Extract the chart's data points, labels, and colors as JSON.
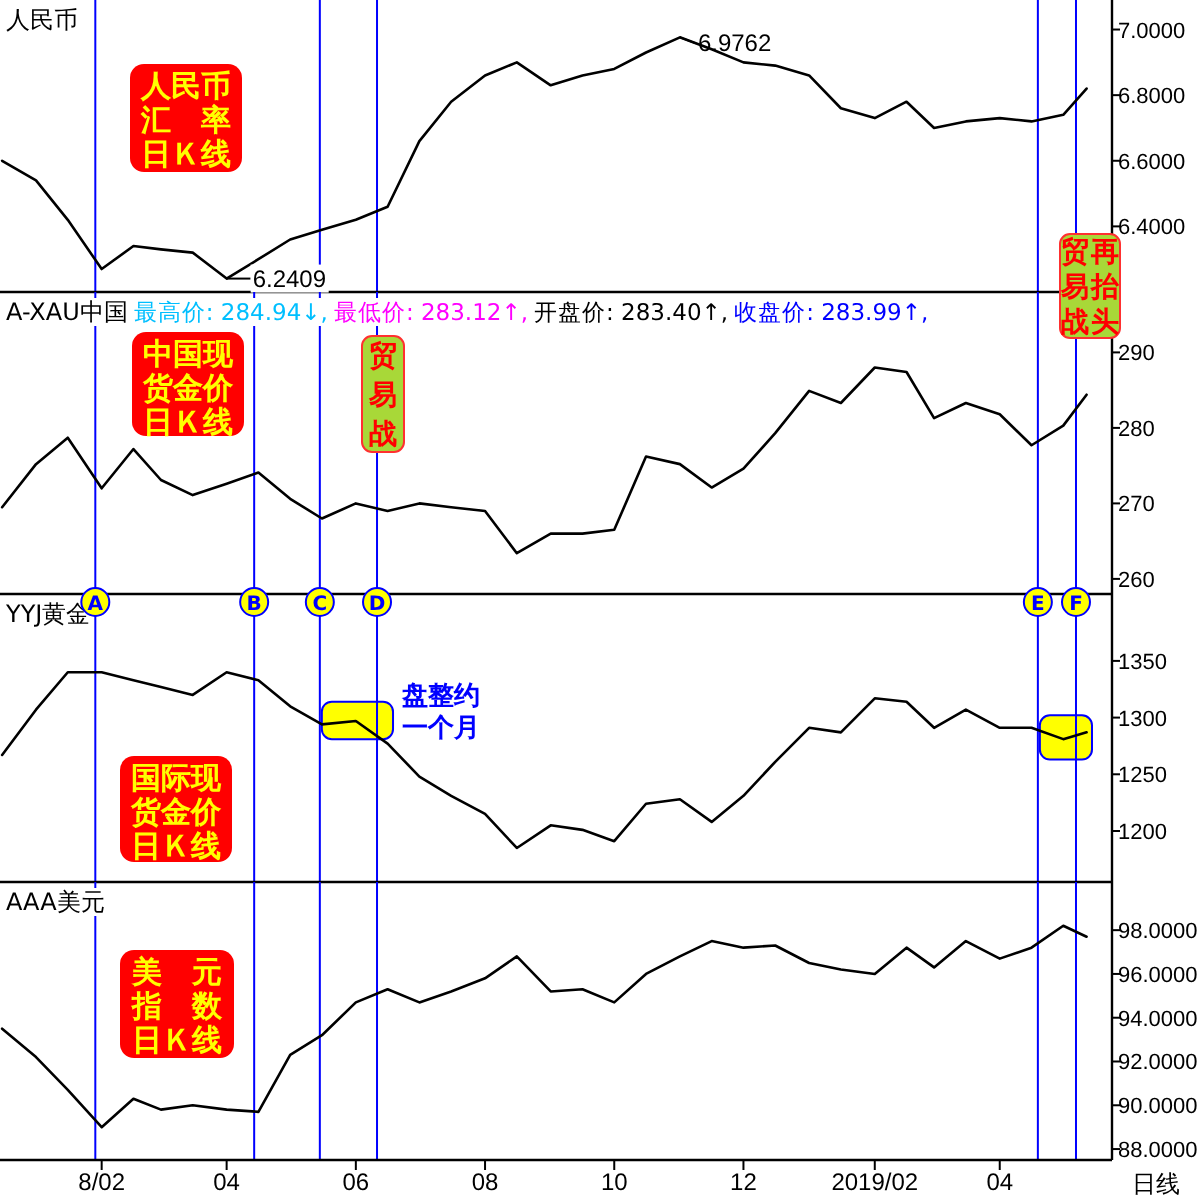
{
  "chart_data": [
    {
      "type": "line",
      "title": "人民币",
      "x": [
        "2017-12-16",
        "2018-01-01",
        "2018-01-16",
        "2018-02-01",
        "2018-02-16",
        "2018-03-01",
        "2018-03-16",
        "2018-04-01",
        "2018-04-16",
        "2018-05-01",
        "2018-05-16",
        "2018-06-01",
        "2018-06-16",
        "2018-07-01",
        "2018-07-16",
        "2018-08-01",
        "2018-08-16",
        "2018-09-01",
        "2018-09-16",
        "2018-10-01",
        "2018-10-16",
        "2018-11-01",
        "2018-11-16",
        "2018-12-01",
        "2018-12-16",
        "2019-01-01",
        "2019-01-16",
        "2019-02-01",
        "2019-02-16",
        "2019-03-01",
        "2019-03-16",
        "2019-04-01",
        "2019-04-16",
        "2019-05-01",
        "2019-05-12"
      ],
      "series": [
        {
          "color": "#000000",
          "values": [
            6.6,
            6.54,
            6.42,
            6.27,
            6.34,
            6.33,
            6.32,
            6.2409,
            6.3,
            6.36,
            6.39,
            6.42,
            6.46,
            6.66,
            6.78,
            6.86,
            6.9,
            6.83,
            6.86,
            6.88,
            6.93,
            6.9762,
            6.94,
            6.9,
            6.89,
            6.86,
            6.76,
            6.73,
            6.78,
            6.7,
            6.72,
            6.73,
            6.72,
            6.74,
            6.82
          ]
        }
      ],
      "xlim": [
        "2017-12-15",
        "2019-05-24"
      ],
      "tick_labels": "y",
      "ylim": [
        6.2,
        7.09
      ],
      "yticks": [
        {
          "value": 6.4,
          "label": "6.4000"
        },
        {
          "value": 6.6,
          "label": "6.6000"
        },
        {
          "value": 6.8,
          "label": "6.8000"
        },
        {
          "value": 7.0,
          "label": "7.0000"
        }
      ],
      "ref_lines": [
        {
          "axis": "x",
          "value": "2018-01-29",
          "color": "#0000ff"
        },
        {
          "axis": "x",
          "value": "2018-05-15",
          "color": "#0000ff"
        },
        {
          "axis": "x",
          "value": "2018-06-11",
          "color": "#0000ff"
        },
        {
          "axis": "x",
          "value": "2019-04-19",
          "color": "#0000ff"
        },
        {
          "axis": "x",
          "value": "2019-05-07",
          "color": "#0000ff"
        }
      ],
      "annotations": [
        "人民币汇　率日Ｋ线",
        {
          "text": "6.9762",
          "x": "2018-11-01",
          "y": 6.9762
        },
        {
          "text": "6.2409",
          "x": "2018-04-01",
          "y": 6.2409
        }
      ]
    },
    {
      "type": "line",
      "title": "A-XAU中国",
      "x": [
        "2017-12-16",
        "2018-01-01",
        "2018-01-16",
        "2018-02-01",
        "2018-02-16",
        "2018-03-01",
        "2018-03-16",
        "2018-04-01",
        "2018-04-16",
        "2018-05-01",
        "2018-05-16",
        "2018-06-01",
        "2018-06-16",
        "2018-07-01",
        "2018-07-16",
        "2018-08-01",
        "2018-08-16",
        "2018-09-01",
        "2018-09-16",
        "2018-10-01",
        "2018-10-16",
        "2018-11-01",
        "2018-11-16",
        "2018-12-01",
        "2018-12-16",
        "2019-01-01",
        "2019-01-16",
        "2019-02-01",
        "2019-02-16",
        "2019-03-01",
        "2019-03-16",
        "2019-04-01",
        "2019-04-16",
        "2019-05-01",
        "2019-05-12"
      ],
      "series": [
        {
          "color": "#000000",
          "values": [
            269.5,
            275.2,
            278.7,
            272.0,
            277.2,
            273.1,
            271.1,
            272.6,
            274.1,
            270.6,
            268.0,
            270.0,
            269.0,
            270.0,
            269.5,
            269.0,
            263.4,
            266.0,
            266.0,
            266.5,
            276.2,
            275.2,
            272.1,
            274.6,
            279.3,
            284.9,
            283.3,
            288.0,
            287.4,
            281.3,
            283.3,
            281.8,
            277.7,
            280.3,
            284.4
          ]
        }
      ],
      "xlim": [
        "2017-12-15",
        "2019-05-24"
      ],
      "tick_labels": "y",
      "ylim": [
        258,
        298
      ],
      "yticks": [
        260,
        270,
        280,
        290
      ],
      "ref_lines": [
        {
          "axis": "x",
          "value": "2018-01-29",
          "color": "#0000ff"
        },
        {
          "axis": "x",
          "value": "2018-04-14",
          "color": "#0000ff"
        },
        {
          "axis": "x",
          "value": "2018-05-15",
          "color": "#0000ff"
        },
        {
          "axis": "x",
          "value": "2018-06-11",
          "color": "#0000ff"
        },
        {
          "axis": "x",
          "value": "2019-04-19",
          "color": "#0000ff"
        },
        {
          "axis": "x",
          "value": "2019-05-07",
          "color": "#0000ff"
        }
      ],
      "annotations": [
        "最高价: 284.94↓,",
        "最低价: 283.12↑,",
        "开盘价: 283.40↑,",
        "收盘价: 283.99↑,",
        "中国现货金价日Ｋ线",
        "贸易战",
        "贸易战再抬头"
      ]
    },
    {
      "type": "line",
      "title": "YYJ黄金",
      "x": [
        "2017-12-16",
        "2018-01-01",
        "2018-01-16",
        "2018-02-01",
        "2018-02-16",
        "2018-03-01",
        "2018-03-16",
        "2018-04-01",
        "2018-04-16",
        "2018-05-01",
        "2018-05-16",
        "2018-06-01",
        "2018-06-16",
        "2018-07-01",
        "2018-07-16",
        "2018-08-01",
        "2018-08-16",
        "2018-09-01",
        "2018-09-16",
        "2018-10-01",
        "2018-10-16",
        "2018-11-01",
        "2018-11-16",
        "2018-12-01",
        "2018-12-16",
        "2019-01-01",
        "2019-01-16",
        "2019-02-01",
        "2019-02-16",
        "2019-03-01",
        "2019-03-16",
        "2019-04-01",
        "2019-04-16",
        "2019-05-01",
        "2019-05-12"
      ],
      "series": [
        {
          "color": "#000000",
          "values": [
            1267,
            1307,
            1340,
            1340,
            1333,
            1327,
            1320,
            1340,
            1333,
            1310,
            1294,
            1297,
            1277,
            1248,
            1231,
            1215,
            1185,
            1205,
            1201,
            1191,
            1224,
            1228,
            1208,
            1231,
            1261,
            1291,
            1287,
            1317,
            1314,
            1291,
            1307,
            1291,
            1291,
            1281,
            1287
          ]
        }
      ],
      "xlim": [
        "2017-12-15",
        "2019-05-24"
      ],
      "tick_labels": "y",
      "ylim": [
        1155,
        1409
      ],
      "yticks": [
        1200,
        1250,
        1300,
        1350
      ],
      "ref_lines": [
        {
          "axis": "x",
          "value": "2018-01-29",
          "label": "A",
          "color": "#0000ff"
        },
        {
          "axis": "x",
          "value": "2018-04-14",
          "label": "B",
          "color": "#0000ff"
        },
        {
          "axis": "x",
          "value": "2018-05-15",
          "label": "C",
          "color": "#0000ff"
        },
        {
          "axis": "x",
          "value": "2018-06-11",
          "label": "D",
          "color": "#0000ff"
        },
        {
          "axis": "x",
          "value": "2019-04-19",
          "label": "E",
          "color": "#0000ff"
        },
        {
          "axis": "x",
          "value": "2019-05-07",
          "label": "F",
          "color": "#0000ff"
        }
      ],
      "annotations": [
        "国际现货金价日Ｋ线",
        "盘整约一个月"
      ]
    },
    {
      "type": "line",
      "title": "AAA美元",
      "x": [
        "2017-12-16",
        "2018-01-01",
        "2018-01-16",
        "2018-02-01",
        "2018-02-16",
        "2018-03-01",
        "2018-03-16",
        "2018-04-01",
        "2018-04-16",
        "2018-05-01",
        "2018-05-16",
        "2018-06-01",
        "2018-06-16",
        "2018-07-01",
        "2018-07-16",
        "2018-08-01",
        "2018-08-16",
        "2018-09-01",
        "2018-09-16",
        "2018-10-01",
        "2018-10-16",
        "2018-11-01",
        "2018-11-16",
        "2018-12-01",
        "2018-12-16",
        "2019-01-01",
        "2019-01-16",
        "2019-02-01",
        "2019-02-16",
        "2019-03-01",
        "2019-03-16",
        "2019-04-01",
        "2019-04-16",
        "2019-05-01",
        "2019-05-12"
      ],
      "series": [
        {
          "color": "#000000",
          "values": [
            93.5,
            92.2,
            90.7,
            89.0,
            90.3,
            89.8,
            90.0,
            89.8,
            89.7,
            92.3,
            93.2,
            94.7,
            95.3,
            94.7,
            95.2,
            95.8,
            96.8,
            95.2,
            95.3,
            94.7,
            96.0,
            96.8,
            97.5,
            97.2,
            97.3,
            96.5,
            96.2,
            96.0,
            97.2,
            96.3,
            97.5,
            96.7,
            97.2,
            98.2,
            97.7
          ]
        }
      ],
      "xlim": [
        "2017-12-15",
        "2019-05-24"
      ],
      "xticks": [
        {
          "value": "2018-02-01",
          "label": "8/02"
        },
        {
          "value": "2018-04-01",
          "label": "04"
        },
        {
          "value": "2018-06-01",
          "label": "06"
        },
        {
          "value": "2018-08-01",
          "label": "08"
        },
        {
          "value": "2018-10-01",
          "label": "10"
        },
        {
          "value": "2018-12-01",
          "label": "12"
        },
        {
          "value": "2019-02-01",
          "label": "2019/02"
        },
        {
          "value": "2019-04-01",
          "label": "04"
        }
      ],
      "ylim": [
        87.5,
        100.2
      ],
      "yticks": [
        {
          "value": 88,
          "label": "88.0000"
        },
        {
          "value": 90,
          "label": "90.0000"
        },
        {
          "value": 92,
          "label": "92.0000"
        },
        {
          "value": 94,
          "label": "94.0000"
        },
        {
          "value": 96,
          "label": "96.0000"
        },
        {
          "value": 98,
          "label": "98.0000"
        }
      ],
      "ref_lines": [
        {
          "axis": "x",
          "value": "2018-01-29",
          "color": "#0000ff"
        },
        {
          "axis": "x",
          "value": "2018-04-14",
          "color": "#0000ff"
        },
        {
          "axis": "x",
          "value": "2018-05-15",
          "color": "#0000ff"
        },
        {
          "axis": "x",
          "value": "2018-06-11",
          "color": "#0000ff"
        },
        {
          "axis": "x",
          "value": "2019-04-19",
          "color": "#0000ff"
        },
        {
          "axis": "x",
          "value": "2019-05-07",
          "color": "#0000ff"
        }
      ],
      "annotations": [
        "美　元指　数日Ｋ线",
        "日线"
      ]
    }
  ]
}
